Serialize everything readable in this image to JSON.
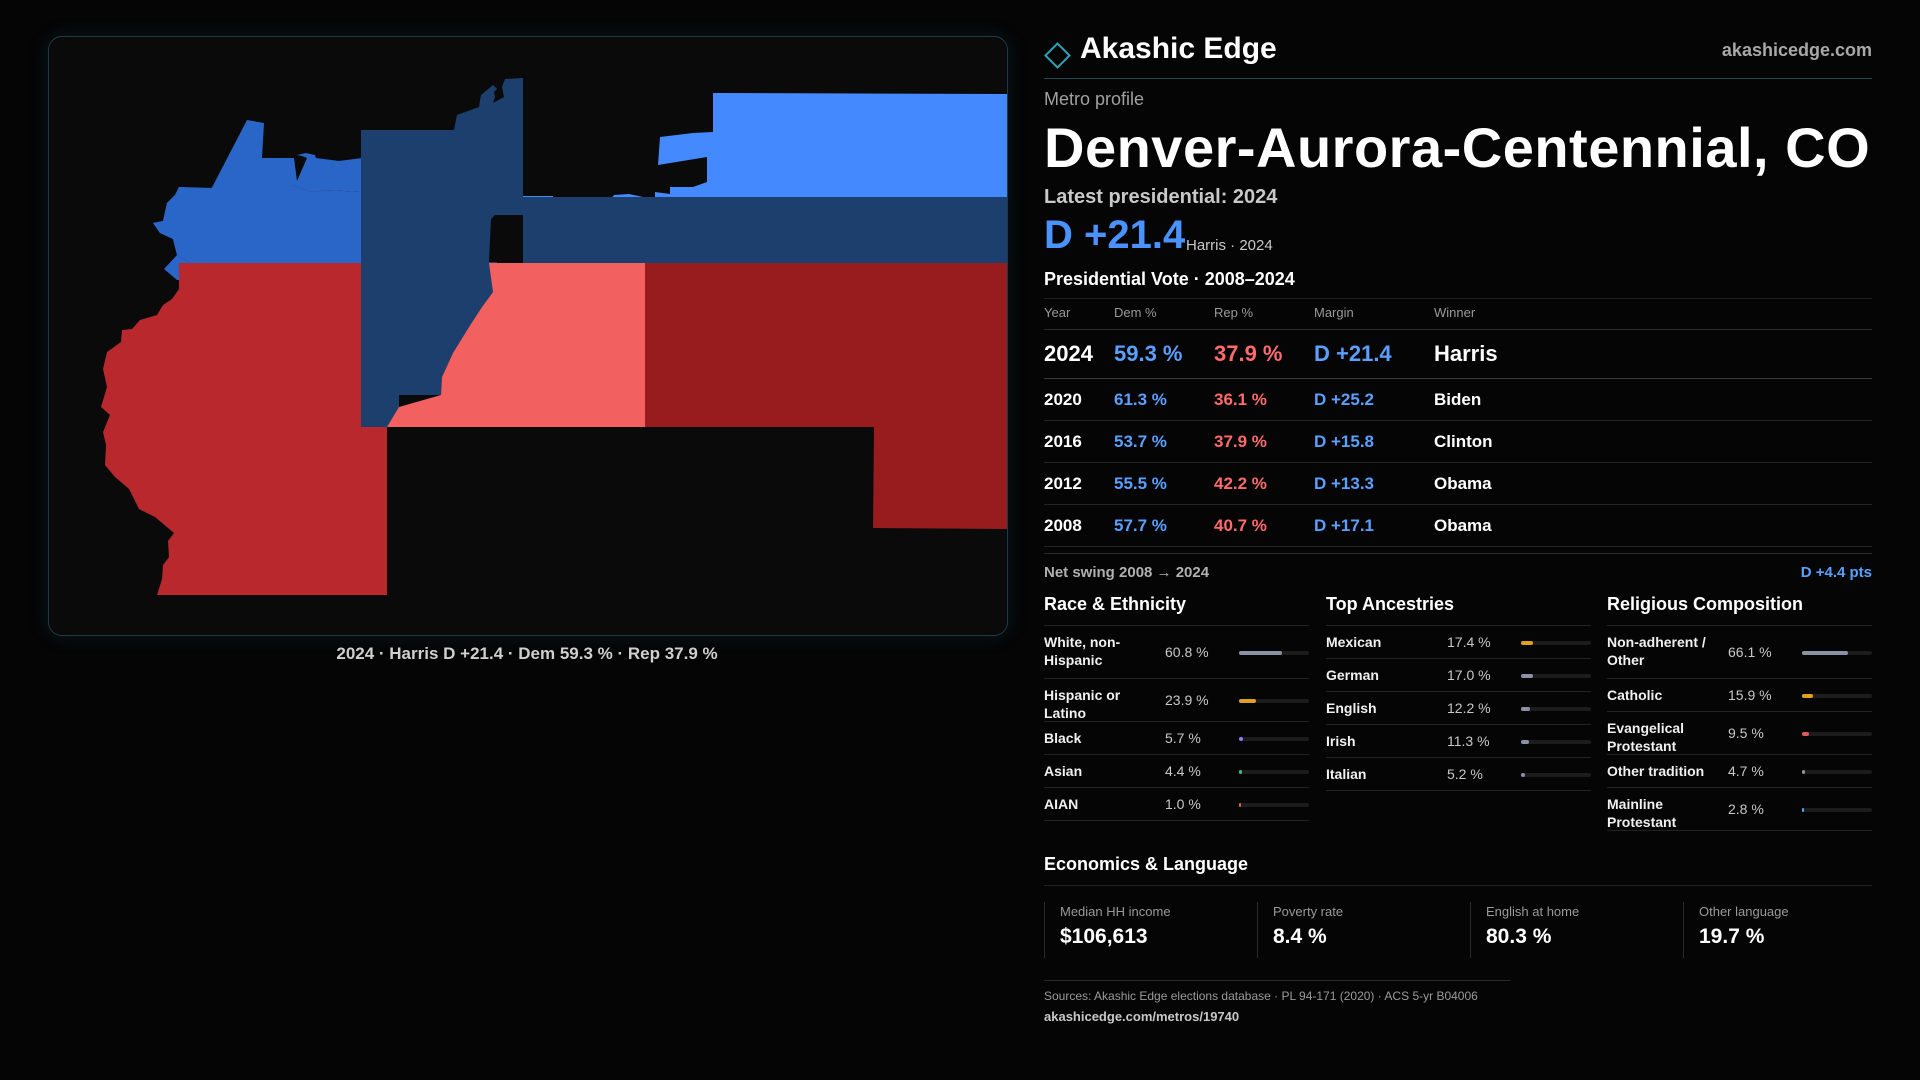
{
  "map": {
    "caption": "2024 · Harris D +21.4 · Dem 59.3 % · Rep 37.9 %",
    "colors": {
      "strong_dem": "#4589ff",
      "mid_dem": "#2a66c8",
      "lean_dem": "#1d3f6e",
      "lean_rep": "#f26060",
      "mid_rep": "#b8282c",
      "strong_rep": "#981c1e"
    }
  },
  "header": {
    "brand": "Akashic Edge",
    "site": "akashicedge.com"
  },
  "eyebrow": "Metro profile",
  "title": "Denver-Aurora-Centennial, CO",
  "latest": "Latest presidential: 2024",
  "headline": {
    "margin": "D +21.4",
    "sub": "Harris · 2024"
  },
  "vote": {
    "title": "Presidential Vote · 2008–2024",
    "headers": {
      "year": "Year",
      "dem": "Dem %",
      "rep": "Rep %",
      "margin": "Margin",
      "winner": "Winner"
    },
    "rows": [
      {
        "year": "2024",
        "dem": "59.3 %",
        "rep": "37.9 %",
        "margin": "D +21.4",
        "winner": "Harris"
      },
      {
        "year": "2020",
        "dem": "61.3 %",
        "rep": "36.1 %",
        "margin": "D +25.2",
        "winner": "Biden"
      },
      {
        "year": "2016",
        "dem": "53.7 %",
        "rep": "37.9 %",
        "margin": "D +15.8",
        "winner": "Clinton"
      },
      {
        "year": "2012",
        "dem": "55.5 %",
        "rep": "42.2 %",
        "margin": "D +13.3",
        "winner": "Obama"
      },
      {
        "year": "2008",
        "dem": "57.7 %",
        "rep": "40.7 %",
        "margin": "D +17.1",
        "winner": "Obama"
      }
    ],
    "swing_label": "Net swing 2008 → 2024",
    "swing_value": "D +4.4 pts"
  },
  "race": {
    "title": "Race & Ethnicity",
    "items": [
      {
        "label": "White, non-Hispanic",
        "pct": "60.8 %",
        "value": 60.8,
        "color": "#8a93a6"
      },
      {
        "label": "Hispanic or Latino",
        "pct": "23.9 %",
        "value": 23.9,
        "color": "#e0a020"
      },
      {
        "label": "Black",
        "pct": "5.7 %",
        "value": 5.7,
        "color": "#8a7cff"
      },
      {
        "label": "Asian",
        "pct": "4.4 %",
        "value": 4.4,
        "color": "#2fbf9a"
      },
      {
        "label": "AIAN",
        "pct": "1.0 %",
        "value": 1.0,
        "color": "#d06a3a"
      }
    ]
  },
  "ancestry": {
    "title": "Top Ancestries",
    "items": [
      {
        "label": "Mexican",
        "pct": "17.4 %",
        "value": 17.4,
        "color": "#e0a020"
      },
      {
        "label": "German",
        "pct": "17.0 %",
        "value": 17.0,
        "color": "#8a93a6"
      },
      {
        "label": "English",
        "pct": "12.2 %",
        "value": 12.2,
        "color": "#8a93a6"
      },
      {
        "label": "Irish",
        "pct": "11.3 %",
        "value": 11.3,
        "color": "#8a93a6"
      },
      {
        "label": "Italian",
        "pct": "5.2 %",
        "value": 5.2,
        "color": "#8a93a6"
      }
    ]
  },
  "religion": {
    "title": "Religious Composition",
    "items": [
      {
        "label": "Non-adherent / Other",
        "pct": "66.1 %",
        "value": 66.1,
        "color": "#8a93a6"
      },
      {
        "label": "Catholic",
        "pct": "15.9 %",
        "value": 15.9,
        "color": "#e0a020"
      },
      {
        "label": "Evangelical Protestant",
        "pct": "9.5 %",
        "value": 9.5,
        "color": "#e05a5a"
      },
      {
        "label": "Other tradition",
        "pct": "4.7 %",
        "value": 4.7,
        "color": "#8a93a6"
      },
      {
        "label": "Mainline Protestant",
        "pct": "2.8 %",
        "value": 2.8,
        "color": "#5aa0ff"
      }
    ]
  },
  "econ": {
    "title": "Economics & Language",
    "stats": [
      {
        "label": "Median HH income",
        "value": "$106,613"
      },
      {
        "label": "Poverty rate",
        "value": "8.4 %"
      },
      {
        "label": "English at home",
        "value": "80.3 %"
      },
      {
        "label": "Other language",
        "value": "19.7 %"
      }
    ]
  },
  "sources": {
    "line": "Sources: Akashic Edge elections database · PL 94-171 (2020) · ACS 5-yr B04006",
    "url": "akashicedge.com/metros/19740"
  }
}
